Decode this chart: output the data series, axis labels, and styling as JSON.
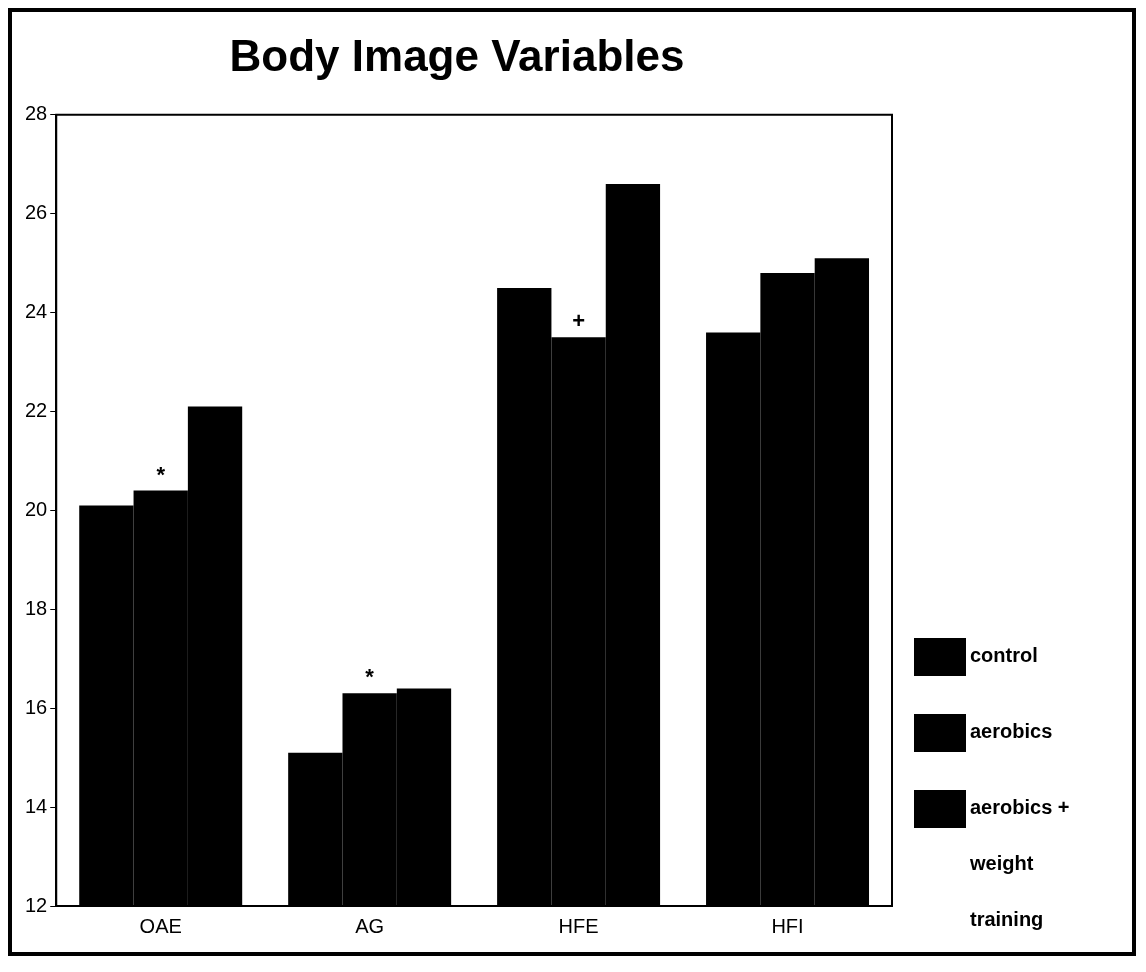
{
  "chart_data": {
    "type": "bar",
    "title": "Body Image Variables",
    "categories": [
      "OAE",
      "AG",
      "HFE",
      "HFI"
    ],
    "series": [
      {
        "name": "control",
        "color": "#000000",
        "values": [
          20.1,
          15.1,
          24.5,
          23.6
        ]
      },
      {
        "name": "aerobics",
        "color": "#000000",
        "values": [
          20.4,
          16.3,
          23.5,
          24.8
        ]
      },
      {
        "name": "aerobics + weight training",
        "color": "#000000",
        "values": [
          22.1,
          16.4,
          26.6,
          25.1
        ]
      }
    ],
    "ylim": [
      12,
      28
    ],
    "yticks": [
      12,
      14,
      16,
      18,
      20,
      22,
      24,
      26,
      28
    ],
    "grid": false,
    "legend": "right",
    "annotations": [
      {
        "text": "*",
        "x": "OAE",
        "y": 20.4
      },
      {
        "text": "*",
        "x": "AG",
        "y": 16.3
      },
      {
        "text": "+",
        "x": "HFE",
        "y": 23.5
      }
    ]
  }
}
